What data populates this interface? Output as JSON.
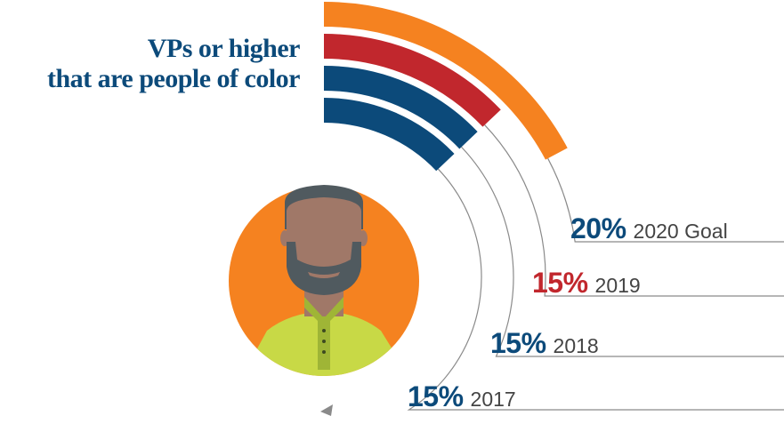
{
  "title": {
    "line1": "VPs or higher",
    "line2": "that are people of color",
    "color": "#0c4a7a"
  },
  "chart_data": {
    "type": "radial-bar",
    "unit": "%",
    "items": [
      {
        "label": "2020 Goal",
        "value": 20,
        "display": "20%",
        "color": "#f58220",
        "label_color": "#0c4a7a"
      },
      {
        "label": "2019",
        "value": 15,
        "display": "15%",
        "color": "#c1272d",
        "label_color": "#c1272d"
      },
      {
        "label": "2018",
        "value": 15,
        "display": "15%",
        "color": "#0c4a7a",
        "label_color": "#0c4a7a"
      },
      {
        "label": "2017",
        "value": 15,
        "display": "15%",
        "color": "#0c4a7a",
        "label_color": "#0c4a7a"
      }
    ]
  },
  "avatar": {
    "icon": "person-avatar-icon",
    "background": "#f58220",
    "skin": "#a07868",
    "hair": "#505a5f",
    "shirt": "#c8d946",
    "shirt_shade": "#9fb536"
  }
}
